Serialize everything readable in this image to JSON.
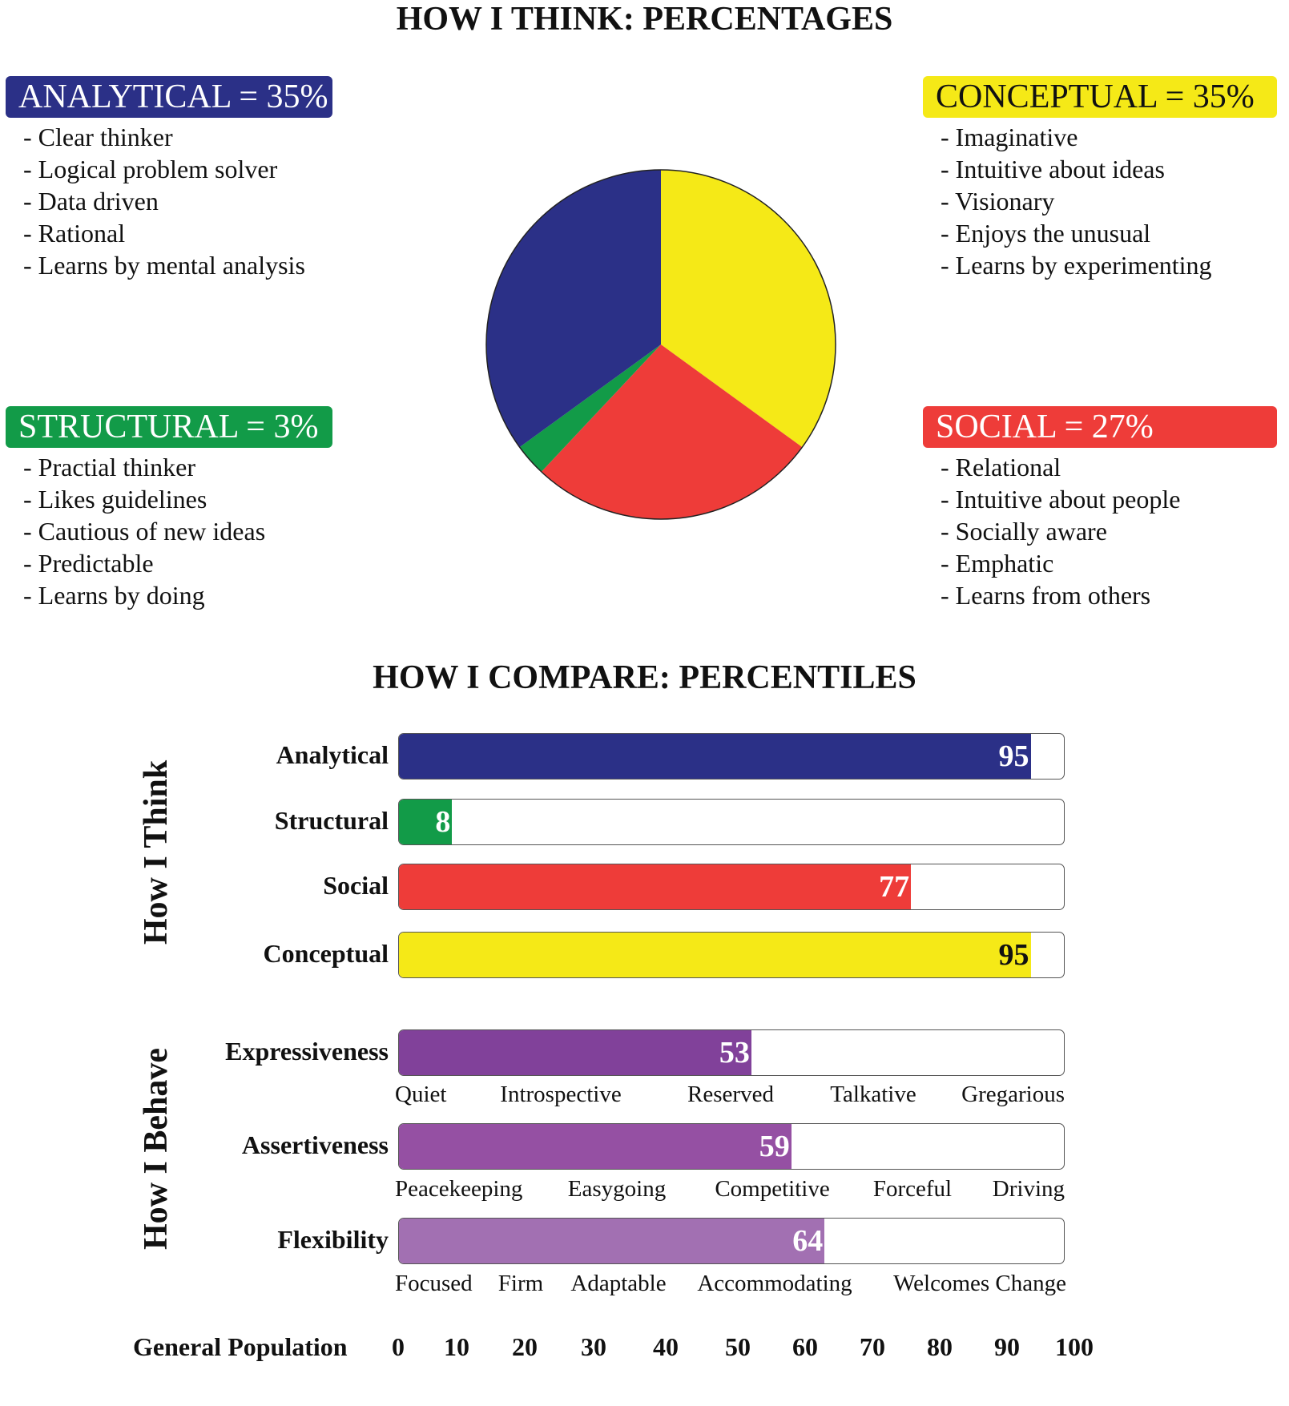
{
  "chart_data": [
    {
      "type": "pie",
      "title": "HOW I THINK: PERCENTAGES",
      "slices": [
        {
          "label": "CONCEPTUAL = 35%",
          "name": "Conceptual",
          "value": 35,
          "color": "#f5e917",
          "traits": [
            "- Imaginative",
            "- Intuitive about ideas",
            "- Visionary",
            "- Enjoys the unusual",
            "- Learns by experimenting"
          ]
        },
        {
          "label": "SOCIAL = 27%",
          "name": "Social",
          "value": 27,
          "color": "#ee3c39",
          "traits": [
            "- Relational",
            "- Intuitive about people",
            "- Socially aware",
            "- Emphatic",
            "- Learns from others"
          ]
        },
        {
          "label": "STRUCTURAL = 3%",
          "name": "Structural",
          "value": 3,
          "color": "#129b48",
          "traits": [
            "- Practial thinker",
            "- Likes guidelines",
            "- Cautious of new ideas",
            "- Predictable",
            "- Learns by doing"
          ]
        },
        {
          "label": "ANALYTICAL = 35%",
          "name": "Analytical",
          "value": 35,
          "color": "#2b3087",
          "traits": [
            "- Clear thinker",
            "- Logical problem solver",
            "- Data driven",
            "- Rational",
            "- Learns by mental analysis"
          ]
        }
      ]
    },
    {
      "type": "bar",
      "orientation": "horizontal",
      "title": "HOW I COMPARE: PERCENTILES",
      "xlabel": "General Population",
      "xlim": [
        0,
        100
      ],
      "xticks": [
        "0",
        "10",
        "20",
        "30",
        "40",
        "50",
        "60",
        "70",
        "80",
        "90",
        "100"
      ],
      "groups": [
        {
          "label": "How I Think",
          "bars": [
            {
              "category": "Analytical",
              "value": 95,
              "color": "#2b3087",
              "value_color": "#ffffff"
            },
            {
              "category": "Structural",
              "value": 8,
              "color": "#129b48",
              "value_color": "#ffffff"
            },
            {
              "category": "Social",
              "value": 77,
              "color": "#ee3c39",
              "value_color": "#ffffff"
            },
            {
              "category": "Conceptual",
              "value": 95,
              "color": "#f5e917",
              "value_color": "#111111"
            }
          ]
        },
        {
          "label": "How I Behave",
          "bars": [
            {
              "category": "Expressiveness",
              "value": 53,
              "color": "#81419a",
              "value_color": "#ffffff",
              "scale": [
                "Quiet",
                "Introspective",
                "Reserved",
                "Talkative",
                "Gregarious"
              ]
            },
            {
              "category": "Assertiveness",
              "value": 59,
              "color": "#9550a3",
              "value_color": "#ffffff",
              "scale": [
                "Peacekeeping",
                "Easygoing",
                "Competitive",
                "Forceful",
                "Driving"
              ]
            },
            {
              "category": "Flexibility",
              "value": 64,
              "color": "#a270b2",
              "value_color": "#ffffff",
              "scale": [
                "Focused",
                "Firm",
                "Adaptable",
                "Accommodating",
                "Welcomes Change"
              ]
            }
          ]
        }
      ]
    }
  ]
}
